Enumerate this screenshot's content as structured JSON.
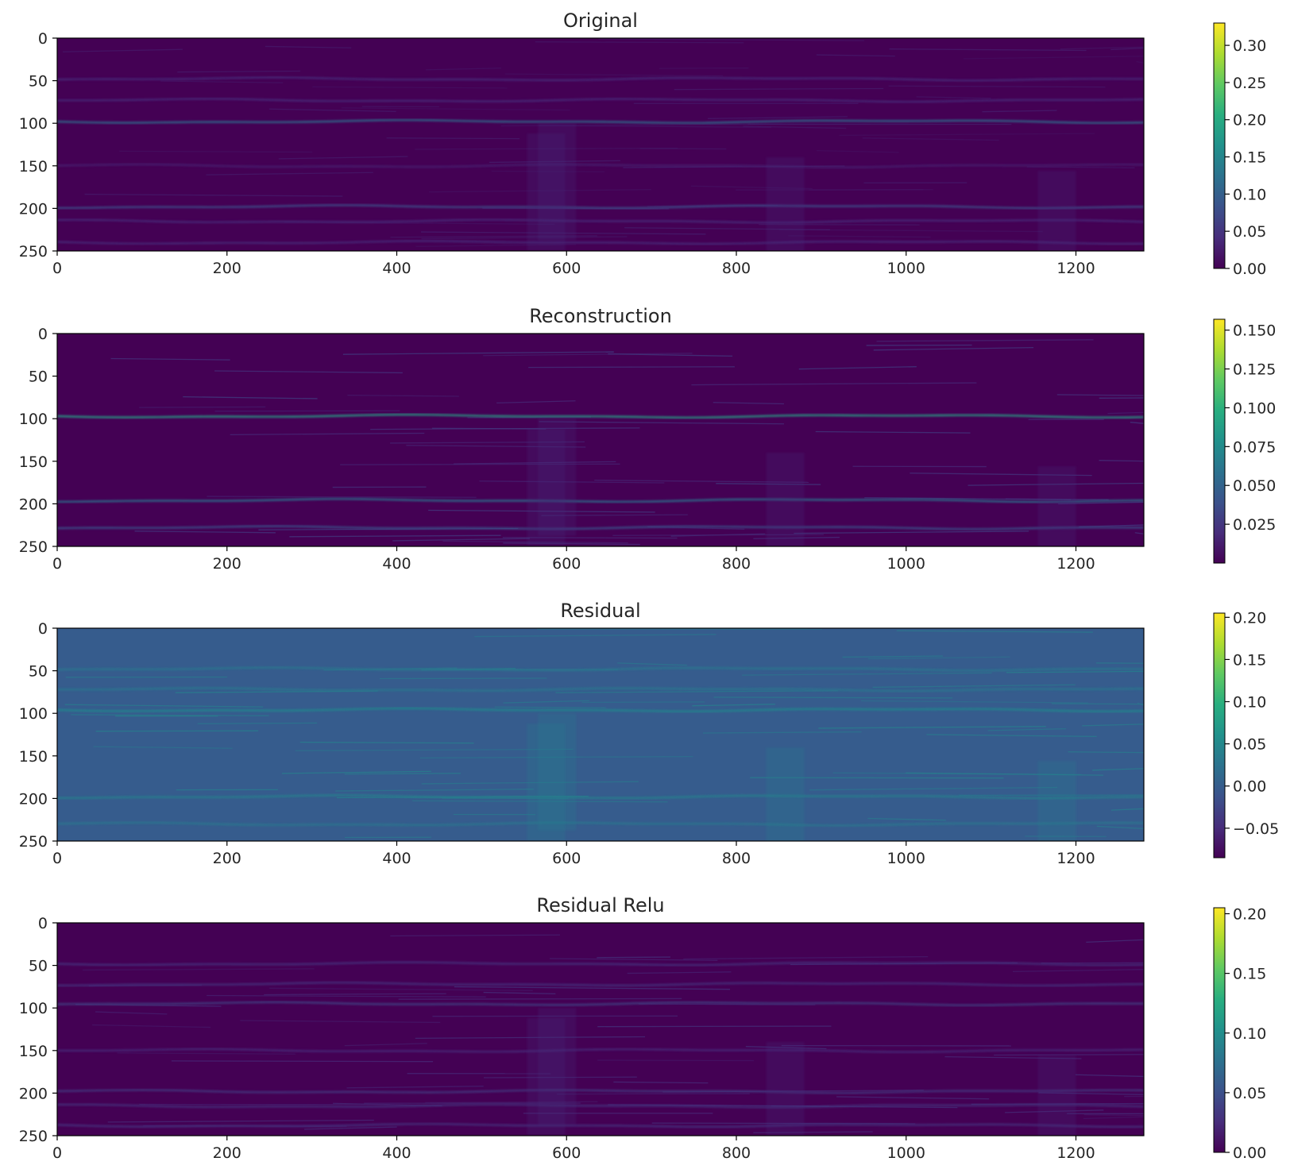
{
  "chart_data": [
    {
      "type": "heatmap",
      "title": "Original",
      "xlim": [
        0,
        1280
      ],
      "ylim": [
        250,
        0
      ],
      "xticks": [
        "0",
        "200",
        "400",
        "600",
        "800",
        "1000",
        "1200"
      ],
      "yticks": [
        "0",
        "50",
        "100",
        "150",
        "200",
        "250"
      ],
      "colormap": "viridis",
      "background": "#440154",
      "colorbar": {
        "min": 0.0,
        "max": 0.33,
        "ticks": [
          "0.00",
          "0.05",
          "0.10",
          "0.15",
          "0.20",
          "0.25",
          "0.30"
        ]
      },
      "bands": [
        {
          "y": 98,
          "intensity": 0.12,
          "description": "bright horizontal band"
        },
        {
          "y": 198,
          "intensity": 0.08,
          "description": "horizontal band"
        },
        {
          "y": 48,
          "intensity": 0.04
        },
        {
          "y": 73,
          "intensity": 0.04
        },
        {
          "y": 150,
          "intensity": 0.03
        },
        {
          "y": 215,
          "intensity": 0.04
        },
        {
          "y": 240,
          "intensity": 0.04
        }
      ]
    },
    {
      "type": "heatmap",
      "title": "Reconstruction",
      "xlim": [
        0,
        1280
      ],
      "ylim": [
        250,
        0
      ],
      "xticks": [
        "0",
        "200",
        "400",
        "600",
        "800",
        "1000",
        "1200"
      ],
      "yticks": [
        "0",
        "50",
        "100",
        "150",
        "200",
        "250"
      ],
      "colormap": "viridis",
      "background": "#440154",
      "colorbar": {
        "min": 0.0,
        "max": 0.157,
        "ticks": [
          "0.025",
          "0.050",
          "0.075",
          "0.100",
          "0.125",
          "0.150"
        ]
      },
      "bands": [
        {
          "y": 97,
          "intensity": 0.09,
          "description": "bright horizontal band"
        },
        {
          "y": 196,
          "intensity": 0.06,
          "description": "horizontal band"
        },
        {
          "y": 228,
          "intensity": 0.04
        }
      ]
    },
    {
      "type": "heatmap",
      "title": "Residual",
      "xlim": [
        0,
        1280
      ],
      "ylim": [
        250,
        0
      ],
      "xticks": [
        "0",
        "200",
        "400",
        "600",
        "800",
        "1000",
        "1200"
      ],
      "yticks": [
        "0",
        "50",
        "100",
        "150",
        "200",
        "250"
      ],
      "colormap": "viridis",
      "background": "#365c8d",
      "colorbar": {
        "min": -0.085,
        "max": 0.205,
        "ticks": [
          "−0.05",
          "0.00",
          "0.05",
          "0.10",
          "0.15",
          "0.20"
        ]
      },
      "bands": [
        {
          "y": 96,
          "intensity": 0.05
        },
        {
          "y": 198,
          "intensity": 0.04
        },
        {
          "y": 48,
          "intensity": 0.03
        },
        {
          "y": 72,
          "intensity": 0.03
        },
        {
          "y": 230,
          "intensity": 0.03
        }
      ]
    },
    {
      "type": "heatmap",
      "title": "Residual Relu",
      "xlim": [
        0,
        1280
      ],
      "ylim": [
        250,
        0
      ],
      "xticks": [
        "0",
        "200",
        "400",
        "600",
        "800",
        "1000",
        "1200"
      ],
      "yticks": [
        "0",
        "50",
        "100",
        "150",
        "200",
        "250"
      ],
      "colormap": "viridis",
      "background": "#440154",
      "colorbar": {
        "min": 0.0,
        "max": 0.205,
        "ticks": [
          "0.00",
          "0.05",
          "0.10",
          "0.15",
          "0.20"
        ]
      },
      "bands": [
        {
          "y": 48,
          "intensity": 0.03
        },
        {
          "y": 72,
          "intensity": 0.03
        },
        {
          "y": 95,
          "intensity": 0.04
        },
        {
          "y": 150,
          "intensity": 0.025
        },
        {
          "y": 198,
          "intensity": 0.035
        },
        {
          "y": 215,
          "intensity": 0.03
        },
        {
          "y": 238,
          "intensity": 0.03
        }
      ]
    }
  ]
}
